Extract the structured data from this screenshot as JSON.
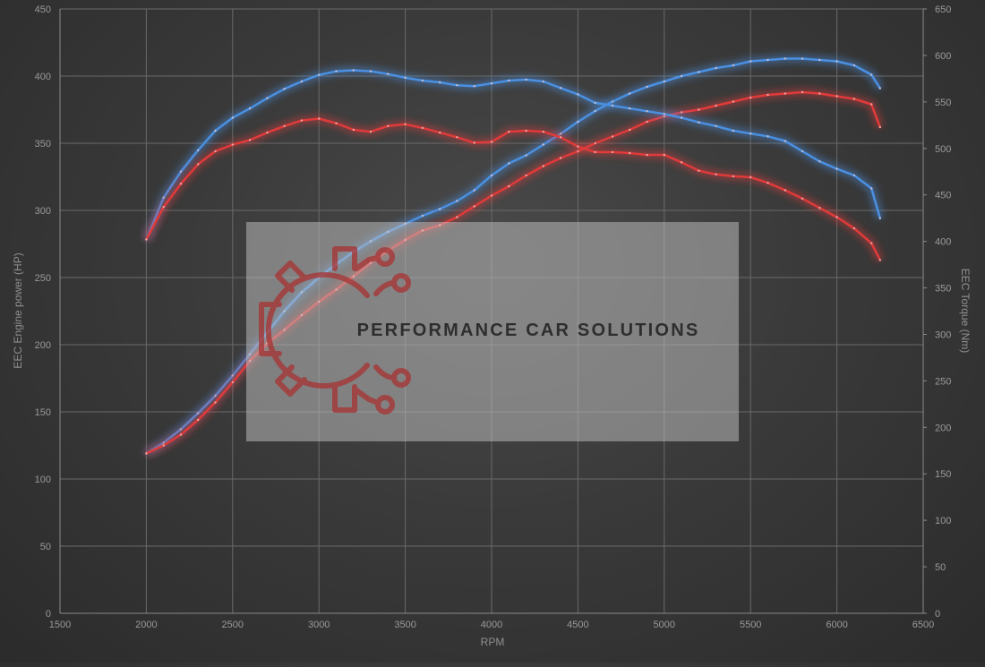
{
  "chart_data": {
    "type": "line",
    "xlabel": "RPM",
    "ylabel": "EEC Engine power (HP)",
    "y2label": "EEC Torque (Nm)",
    "xlim": [
      1500,
      6500
    ],
    "ylim": [
      0,
      450
    ],
    "y2lim": [
      0,
      650
    ],
    "x_ticks": [
      "1500",
      "2000",
      "2500",
      "3000",
      "3500",
      "4000",
      "4500",
      "5000",
      "5500",
      "6000",
      "6500"
    ],
    "y_ticks": [
      "0",
      "50",
      "100",
      "150",
      "200",
      "250",
      "300",
      "350",
      "400",
      "450"
    ],
    "y2_ticks": [
      "0",
      "50",
      "100",
      "150",
      "200",
      "250",
      "300",
      "350",
      "400",
      "450",
      "500",
      "550",
      "600",
      "650"
    ],
    "grid": true,
    "colors": {
      "modified": "#4a90e2",
      "stock": "#e03a3a"
    },
    "series": [
      {
        "key": "modified_power",
        "axis": "left",
        "color": "modified",
        "x": [
          2000,
          2100,
          2200,
          2300,
          2400,
          2500,
          2600,
          2700,
          2800,
          2900,
          3000,
          3100,
          3200,
          3300,
          3400,
          3500,
          3600,
          3700,
          3800,
          3900,
          4000,
          4100,
          4200,
          4300,
          4400,
          4500,
          4600,
          4700,
          4800,
          4900,
          5000,
          5100,
          5200,
          5300,
          5400,
          5500,
          5600,
          5700,
          5800,
          5900,
          6000,
          6100,
          6200,
          6250
        ],
        "y": [
          119,
          127,
          137,
          149,
          162,
          177,
          193,
          209,
          225,
          239,
          250,
          260,
          269,
          277,
          284,
          290,
          296,
          301,
          307,
          315,
          326,
          335,
          341,
          349,
          357,
          366,
          374,
          381,
          387,
          392,
          396,
          400,
          403,
          406,
          408,
          411,
          412,
          413,
          413,
          412,
          411,
          408,
          401,
          391
        ]
      },
      {
        "key": "stock_power",
        "axis": "left",
        "color": "stock",
        "x": [
          2000,
          2100,
          2200,
          2300,
          2400,
          2500,
          2600,
          2700,
          2800,
          2900,
          3000,
          3100,
          3200,
          3300,
          3400,
          3500,
          3600,
          3700,
          3800,
          3900,
          4000,
          4100,
          4200,
          4300,
          4400,
          4500,
          4600,
          4700,
          4800,
          4900,
          5000,
          5100,
          5200,
          5300,
          5400,
          5500,
          5600,
          5700,
          5800,
          5900,
          6000,
          6100,
          6200,
          6250
        ],
        "y": [
          119,
          125,
          133,
          144,
          157,
          172,
          188,
          201,
          211,
          222,
          232,
          241,
          251,
          261,
          270,
          278,
          285,
          289,
          295,
          303,
          311,
          318,
          326,
          333,
          339,
          344,
          350,
          355,
          360,
          366,
          370,
          373,
          375,
          378,
          381,
          384,
          386,
          387,
          388,
          387,
          385,
          383,
          379,
          362
        ]
      },
      {
        "key": "modified_torque",
        "axis": "right",
        "color": "modified",
        "x": [
          2000,
          2100,
          2200,
          2300,
          2400,
          2500,
          2600,
          2700,
          2800,
          2900,
          3000,
          3100,
          3200,
          3300,
          3400,
          3500,
          3600,
          3700,
          3800,
          3900,
          4000,
          4100,
          4200,
          4300,
          4400,
          4500,
          4600,
          4700,
          4800,
          4900,
          5000,
          5100,
          5200,
          5300,
          5400,
          5500,
          5600,
          5700,
          5800,
          5900,
          6000,
          6100,
          6200,
          6250
        ],
        "y": [
          402,
          447,
          475,
          498,
          519,
          533,
          543,
          554,
          564,
          572,
          579,
          583,
          584,
          583,
          580,
          576,
          573,
          571,
          568,
          567,
          570,
          573,
          574,
          572,
          565,
          558,
          549,
          546,
          543,
          540,
          537,
          533,
          528,
          524,
          519,
          516,
          513,
          508,
          497,
          486,
          478,
          471,
          457,
          425
        ]
      },
      {
        "key": "stock_torque",
        "axis": "right",
        "color": "stock",
        "x": [
          2000,
          2100,
          2200,
          2300,
          2400,
          2500,
          2600,
          2700,
          2800,
          2900,
          3000,
          3100,
          3200,
          3300,
          3400,
          3500,
          3600,
          3700,
          3800,
          3900,
          4000,
          4100,
          4200,
          4300,
          4400,
          4500,
          4600,
          4700,
          4800,
          4900,
          5000,
          5100,
          5200,
          5300,
          5400,
          5500,
          5600,
          5700,
          5800,
          5900,
          6000,
          6100,
          6200,
          6250
        ],
        "y": [
          402,
          437,
          462,
          483,
          497,
          504,
          509,
          517,
          524,
          530,
          532,
          527,
          520,
          518,
          524,
          526,
          522,
          517,
          512,
          506,
          507,
          518,
          519,
          518,
          512,
          502,
          496,
          496,
          495,
          493,
          493,
          485,
          476,
          472,
          470,
          469,
          463,
          455,
          446,
          436,
          426,
          414,
          398,
          380
        ]
      }
    ]
  },
  "watermark": {
    "text": "PERFORMANCE CAR SOLUTIONS",
    "logo": "gear-circuit-logo"
  }
}
